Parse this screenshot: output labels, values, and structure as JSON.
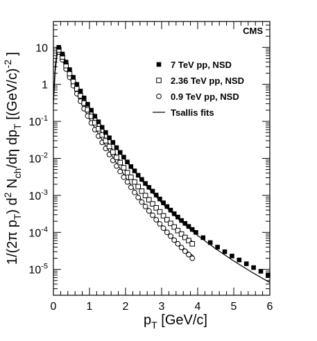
{
  "chart_data": {
    "type": "scatter",
    "title": "",
    "annotation": "CMS",
    "xlabel": "p_T [GeV/c]",
    "xlabel_parts": {
      "main": "p",
      "sub": "T",
      "tail": " [GeV/c]"
    },
    "ylabel": "1/(2π p_T) d^2 N_ch/dη dp_T [(GeV/c)^-2 ]",
    "ylabel_parts": [
      {
        "t": "1/(2π p",
        "s": "n"
      },
      {
        "t": "T",
        "s": "sub"
      },
      {
        "t": ") d",
        "s": "n"
      },
      {
        "t": "2",
        "s": "sup"
      },
      {
        "t": " N",
        "s": "n"
      },
      {
        "t": "ch",
        "s": "sub"
      },
      {
        "t": "/dη dp",
        "s": "n"
      },
      {
        "t": "T",
        "s": "sub"
      },
      {
        "t": " [(GeV/c)",
        "s": "n"
      },
      {
        "t": "-2",
        "s": "sup"
      },
      {
        "t": " ]",
        "s": "n"
      }
    ],
    "xlim": [
      0,
      6
    ],
    "ylim": [
      2e-06,
      50
    ],
    "yscale": "log",
    "x_ticks": [
      "0",
      "1",
      "2",
      "3",
      "4",
      "5",
      "6"
    ],
    "y_ticks": [
      {
        "base": "10",
        "exp": "",
        "value": 10
      },
      {
        "base": "1",
        "exp": "",
        "value": 1
      },
      {
        "base": "10",
        "exp": "-1",
        "value": 0.1
      },
      {
        "base": "10",
        "exp": "-2",
        "value": 0.01
      },
      {
        "base": "10",
        "exp": "-3",
        "value": 0.001
      },
      {
        "base": "10",
        "exp": "-4",
        "value": 0.0001
      },
      {
        "base": "10",
        "exp": "-5",
        "value": 1e-05
      }
    ],
    "legend": {
      "placement": "top-right",
      "entries": [
        {
          "label": "7 TeV pp, NSD",
          "marker": "filled-square"
        },
        {
          "label": "2.36 TeV pp, NSD",
          "marker": "open-square"
        },
        {
          "label": "0.9 TeV pp, NSD",
          "marker": "open-circle"
        },
        {
          "label": "Tsallis fits",
          "marker": "line"
        }
      ]
    },
    "series": [
      {
        "name": "7 TeV pp, NSD",
        "marker": "filled-square",
        "x": [
          0.15,
          0.25,
          0.35,
          0.45,
          0.55,
          0.65,
          0.75,
          0.85,
          0.95,
          1.05,
          1.15,
          1.25,
          1.35,
          1.45,
          1.55,
          1.65,
          1.75,
          1.85,
          1.95,
          2.05,
          2.15,
          2.25,
          2.35,
          2.45,
          2.55,
          2.65,
          2.75,
          2.85,
          2.95,
          3.05,
          3.15,
          3.25,
          3.35,
          3.45,
          3.55,
          3.65,
          3.75,
          3.85,
          3.95,
          4.15,
          4.35,
          4.55,
          4.75,
          4.95,
          5.15,
          5.35,
          5.55,
          5.75,
          5.95
        ],
        "y": [
          10,
          6.6,
          4.0,
          2.5,
          1.55,
          1.0,
          0.66,
          0.43,
          0.29,
          0.2,
          0.138,
          0.097,
          0.069,
          0.05,
          0.036,
          0.027,
          0.0195,
          0.0145,
          0.0108,
          0.008,
          0.006,
          0.0046,
          0.0035,
          0.0027,
          0.0021,
          0.00165,
          0.0013,
          0.00102,
          0.0008,
          0.00063,
          0.0005,
          0.0004,
          0.00032,
          0.00026,
          0.00021,
          0.000175,
          0.000145,
          0.00012,
          0.0001,
          7.2e-05,
          5.3e-05,
          4e-05,
          3e-05,
          2.3e-05,
          1.8e-05,
          1.42e-05,
          1.12e-05,
          8.9e-06,
          7.1e-06
        ]
      },
      {
        "name": "2.36 TeV pp, NSD",
        "marker": "open-square",
        "x": [
          0.15,
          0.25,
          0.35,
          0.45,
          0.55,
          0.65,
          0.75,
          0.85,
          0.95,
          1.05,
          1.15,
          1.25,
          1.35,
          1.45,
          1.55,
          1.65,
          1.75,
          1.85,
          1.95,
          2.05,
          2.15,
          2.25,
          2.35,
          2.45,
          2.55,
          2.65,
          2.75,
          2.85,
          2.95,
          3.05,
          3.15,
          3.25,
          3.35,
          3.45,
          3.55,
          3.65,
          3.75,
          3.85
        ],
        "y": [
          8.5,
          5.5,
          3.2,
          1.95,
          1.2,
          0.76,
          0.49,
          0.31,
          0.205,
          0.137,
          0.092,
          0.063,
          0.043,
          0.03,
          0.021,
          0.0148,
          0.0106,
          0.0077,
          0.0056,
          0.0041,
          0.0031,
          0.0023,
          0.00172,
          0.0013,
          0.00099,
          0.00076,
          0.00059,
          0.00046,
          0.00036,
          0.00028,
          0.00022,
          0.000175,
          0.00014,
          0.000112,
          9e-05,
          7.3e-05,
          6e-05,
          4.9e-05
        ]
      },
      {
        "name": "0.9 TeV pp, NSD",
        "marker": "open-circle",
        "x": [
          0.15,
          0.25,
          0.35,
          0.45,
          0.55,
          0.65,
          0.75,
          0.85,
          0.95,
          1.05,
          1.15,
          1.25,
          1.35,
          1.45,
          1.55,
          1.65,
          1.75,
          1.85,
          1.95,
          2.05,
          2.15,
          2.25,
          2.35,
          2.45,
          2.55,
          2.65,
          2.75,
          2.85,
          2.95,
          3.05,
          3.15,
          3.25,
          3.35,
          3.45,
          3.55,
          3.65,
          3.75,
          3.85
        ],
        "y": [
          7.5,
          4.6,
          2.6,
          1.55,
          0.92,
          0.56,
          0.35,
          0.22,
          0.14,
          0.091,
          0.06,
          0.04,
          0.027,
          0.0185,
          0.0127,
          0.0088,
          0.0062,
          0.0044,
          0.0031,
          0.0023,
          0.00165,
          0.0012,
          0.00088,
          0.00066,
          0.0005,
          0.00038,
          0.00029,
          0.00022,
          0.00017,
          0.00013,
          0.0001,
          7.9e-05,
          6.2e-05,
          4.9e-05,
          3.9e-05,
          3.1e-05,
          2.5e-05,
          2e-05
        ]
      },
      {
        "name": "Tsallis fits",
        "marker": "line",
        "curves": [
          {
            "x": [
              0.0,
              0.05,
              0.1,
              0.15,
              0.3,
              0.5,
              0.75,
              1.0,
              1.5,
              2.0,
              2.5,
              3.0,
              3.5,
              4.0,
              4.5,
              5.0,
              5.5,
              6.0
            ],
            "y": [
              0.4,
              3.0,
              8.0,
              10.0,
              5.2,
              1.9,
              0.6,
              0.24,
              0.043,
              0.0088,
              0.0022,
              0.00063,
              0.00021,
              8.2e-05,
              3.6e-05,
              1.68e-05,
              8.4e-06,
              4.4e-06
            ]
          },
          {
            "x": [
              0.0,
              0.05,
              0.1,
              0.15,
              0.3,
              0.5,
              0.75,
              1.0,
              1.5,
              2.0,
              2.5,
              3.0,
              3.5,
              3.9
            ],
            "y": [
              0.35,
              2.6,
              7.0,
              8.5,
              4.2,
              1.45,
              0.43,
              0.165,
              0.028,
              0.0051,
              0.00114,
              0.00031,
              0.000105,
              5.2e-05
            ]
          },
          {
            "x": [
              0.0,
              0.05,
              0.1,
              0.15,
              0.3,
              0.5,
              0.75,
              1.0,
              1.5,
              2.0,
              2.5,
              3.0,
              3.5,
              3.9
            ],
            "y": [
              0.3,
              2.3,
              6.2,
              7.5,
              3.5,
              1.15,
              0.33,
              0.115,
              0.0182,
              0.0031,
              0.00062,
              0.000155,
              4.6e-05,
              2.2e-05
            ]
          }
        ]
      }
    ]
  }
}
